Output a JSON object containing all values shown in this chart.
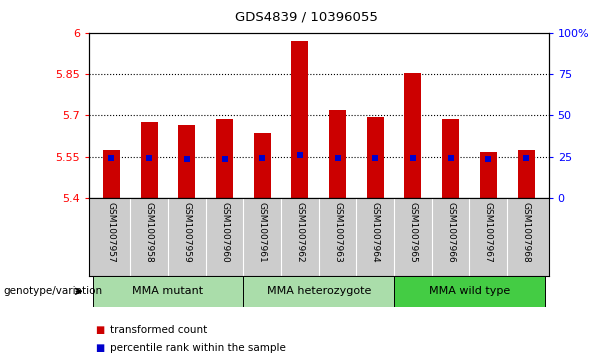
{
  "title": "GDS4839 / 10396055",
  "samples": [
    "GSM1007957",
    "GSM1007958",
    "GSM1007959",
    "GSM1007960",
    "GSM1007961",
    "GSM1007962",
    "GSM1007963",
    "GSM1007964",
    "GSM1007965",
    "GSM1007966",
    "GSM1007967",
    "GSM1007968"
  ],
  "bar_values": [
    5.575,
    5.675,
    5.665,
    5.685,
    5.635,
    5.97,
    5.72,
    5.695,
    5.855,
    5.685,
    5.565,
    5.575
  ],
  "percentile_values": [
    5.545,
    5.545,
    5.54,
    5.54,
    5.545,
    5.555,
    5.545,
    5.545,
    5.545,
    5.545,
    5.54,
    5.545
  ],
  "bar_bottom": 5.4,
  "ylim_left": [
    5.4,
    6.0
  ],
  "ylim_right": [
    0,
    100
  ],
  "yticks_left": [
    5.4,
    5.55,
    5.7,
    5.85,
    6.0
  ],
  "yticks_right": [
    0,
    25,
    50,
    75,
    100
  ],
  "ytick_labels_left": [
    "5.4",
    "5.55",
    "5.7",
    "5.85",
    "6"
  ],
  "ytick_labels_right": [
    "0",
    "25",
    "50",
    "75",
    "100%"
  ],
  "hlines": [
    5.55,
    5.7,
    5.85
  ],
  "groups": [
    {
      "label": "MMA mutant",
      "start": 0,
      "end": 3
    },
    {
      "label": "MMA heterozygote",
      "start": 4,
      "end": 7
    },
    {
      "label": "MMA wild type",
      "start": 8,
      "end": 11
    }
  ],
  "group_colors": [
    "#aaddaa",
    "#aaddaa",
    "#44cc44"
  ],
  "genotype_label": "genotype/variation",
  "bar_color": "#cc0000",
  "percentile_color": "#0000cc",
  "cell_bg_color": "#cccccc",
  "plot_bg": "#ffffff",
  "legend_items": [
    "transformed count",
    "percentile rank within the sample"
  ],
  "legend_colors": [
    "#cc0000",
    "#0000cc"
  ],
  "bar_width": 0.45
}
